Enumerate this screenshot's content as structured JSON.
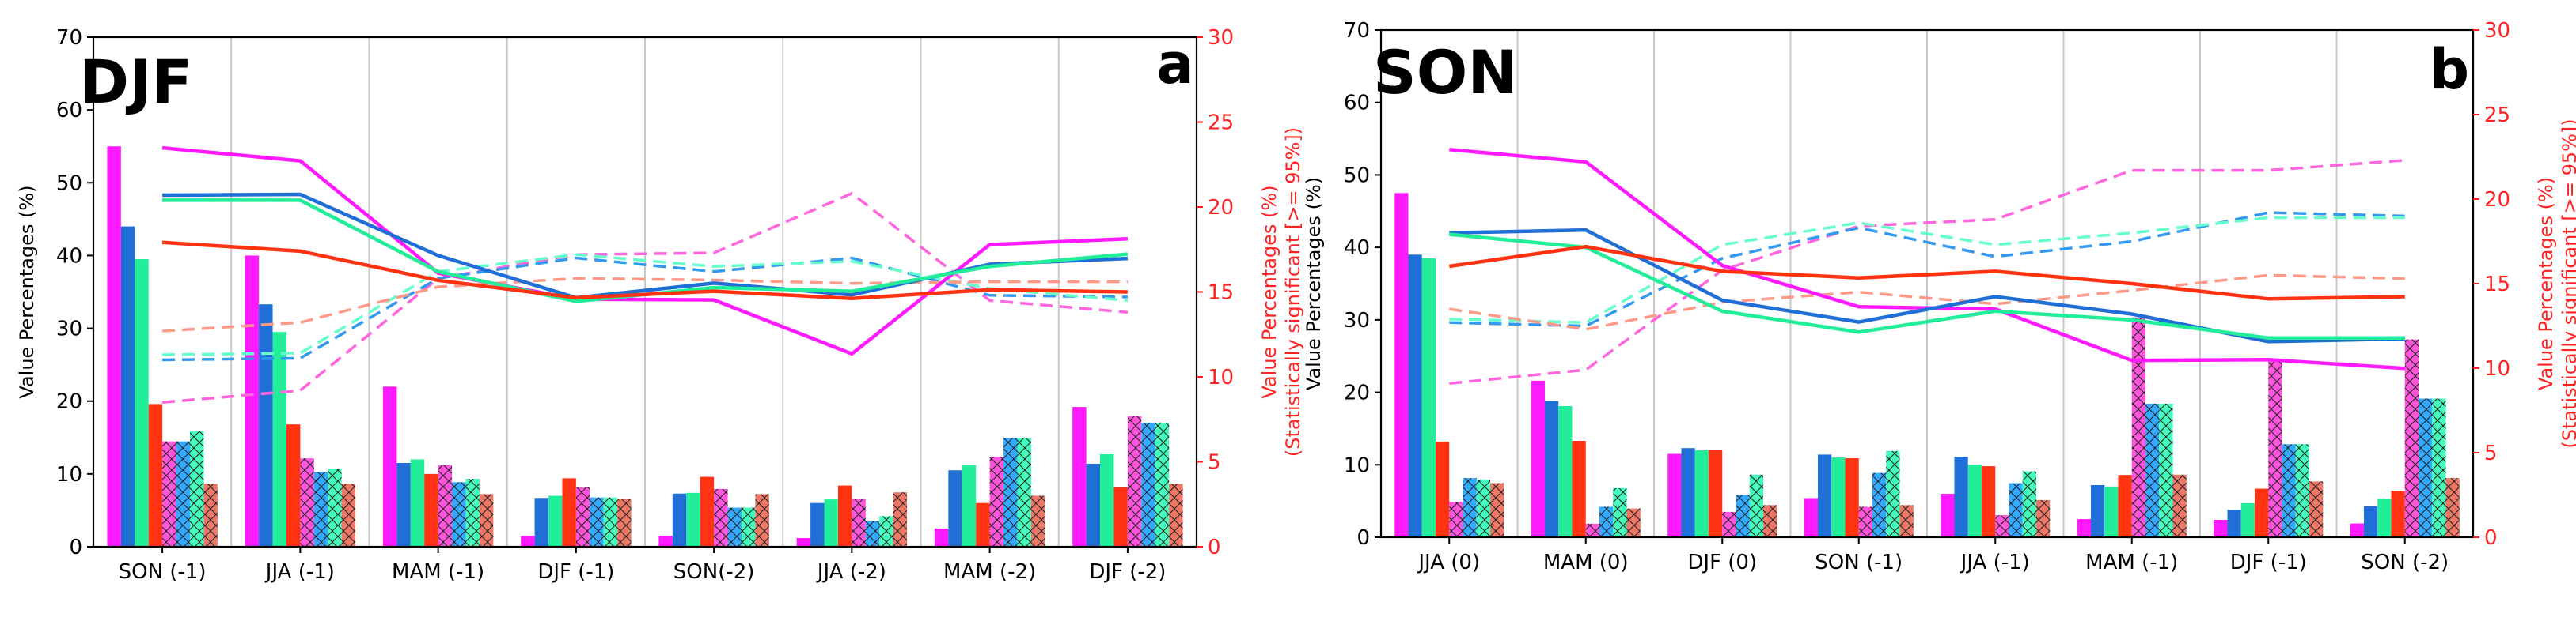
{
  "colors": {
    "magenta": "#ff1aff",
    "blue": "#1f6fd6",
    "green": "#22ee99",
    "red": "#ff3311",
    "hatch_magenta": "#ff55dd",
    "hatch_blue": "#33aaff",
    "hatch_green": "#44ffbb",
    "hatch_red": "#ee7766",
    "dash_magenta": "#ff66dd",
    "dash_blue": "#3399ee",
    "dash_green": "#66ffcc",
    "dash_red": "#ff9988",
    "left_axis": "#000000",
    "right_axis": "#ff2222",
    "grid": "#c8c8c8"
  },
  "chart_data": [
    {
      "type": "bar",
      "panel": "a",
      "season": "DJF",
      "ylabel": "Value Percentages (%)",
      "ylabel2_line1": "Value Percentages (%)",
      "ylabel2_line2": "(Statistically significant [>= 95%])",
      "ylim": [
        0,
        70
      ],
      "yticks": [
        0,
        10,
        20,
        30,
        40,
        50,
        60,
        70
      ],
      "ylim2": [
        0,
        30
      ],
      "yticks2": [
        0,
        5,
        10,
        15,
        20,
        25,
        30
      ],
      "categories": [
        "SON (-1)",
        "JJA (-1)",
        "MAM (-1)",
        "DJF (-1)",
        "SON(-2)",
        "JJA (-2)",
        "MAM (-2)",
        "DJF (-2)"
      ],
      "bars_left_axis": [
        {
          "name": "magenta",
          "values": [
            55,
            40,
            22,
            1.5,
            1.5,
            1.2,
            2.5,
            19.2
          ]
        },
        {
          "name": "blue",
          "values": [
            44,
            33.3,
            11.5,
            6.7,
            7.3,
            6,
            10.5,
            11.4
          ]
        },
        {
          "name": "green",
          "values": [
            39.5,
            29.5,
            12,
            7,
            7.4,
            6.5,
            11.2,
            12.7
          ]
        },
        {
          "name": "red",
          "values": [
            19.6,
            16.8,
            10,
            9.4,
            9.6,
            8.4,
            6,
            8.2
          ]
        }
      ],
      "bars_right_axis_hatched": [
        {
          "name": "magenta",
          "values": [
            6.2,
            5.2,
            4.8,
            3.5,
            3.4,
            2.8,
            5.3,
            7.7
          ]
        },
        {
          "name": "blue",
          "values": [
            6.2,
            4.4,
            3.8,
            2.9,
            2.3,
            1.5,
            6.4,
            7.3
          ]
        },
        {
          "name": "green",
          "values": [
            6.8,
            4.6,
            4,
            2.9,
            2.3,
            1.8,
            6.4,
            7.3
          ]
        },
        {
          "name": "red",
          "values": [
            3.7,
            3.7,
            3.1,
            2.8,
            3.1,
            3.2,
            3,
            3.7
          ]
        }
      ],
      "lines_left_axis": [
        {
          "name": "magenta",
          "values": [
            54.8,
            53,
            37.6,
            34,
            33.9,
            26.5,
            41.5,
            42.3
          ]
        },
        {
          "name": "blue",
          "values": [
            48.3,
            48.4,
            40,
            34.2,
            36.2,
            34.6,
            38.8,
            39.6
          ]
        },
        {
          "name": "green",
          "values": [
            47.6,
            47.6,
            37.8,
            33.7,
            35.6,
            35.1,
            38.5,
            40.2
          ]
        },
        {
          "name": "red",
          "values": [
            41.8,
            40.6,
            36.6,
            34.2,
            35.1,
            34.1,
            35.3,
            35
          ]
        }
      ],
      "lines_right_axis_dashed": [
        {
          "name": "magenta",
          "values": [
            8.5,
            9.2,
            15.8,
            17.2,
            17.3,
            20.8,
            14.5,
            13.8
          ]
        },
        {
          "name": "blue",
          "values": [
            11,
            11.1,
            15.8,
            17,
            16.2,
            17,
            14.8,
            14.7
          ]
        },
        {
          "name": "green",
          "values": [
            11.3,
            11.4,
            16.2,
            17.2,
            16.5,
            16.8,
            15.2,
            14.5
          ]
        },
        {
          "name": "red",
          "values": [
            12.7,
            13.2,
            15.3,
            15.8,
            15.7,
            15.5,
            15.6,
            15.6
          ]
        }
      ]
    },
    {
      "type": "bar",
      "panel": "b",
      "season": "SON",
      "ylabel": "Value Percentages (%)",
      "ylabel2_line1": "Value Percentages (%)",
      "ylabel2_line2": "(Statistically significant [>= 95%])",
      "ylim": [
        0,
        70
      ],
      "yticks": [
        0,
        10,
        20,
        30,
        40,
        50,
        60,
        70
      ],
      "ylim2": [
        0,
        30
      ],
      "yticks2": [
        0,
        5,
        10,
        15,
        20,
        25,
        30
      ],
      "categories": [
        "JJA (0)",
        "MAM (0)",
        "DJF (0)",
        "SON (-1)",
        "JJA (-1)",
        "MAM (-1)",
        "DJF (-1)",
        "SON (-2)"
      ],
      "bars_left_axis": [
        {
          "name": "magenta",
          "values": [
            47.5,
            21.6,
            11.5,
            5.4,
            6,
            2.5,
            2.4,
            1.9
          ]
        },
        {
          "name": "blue",
          "values": [
            39,
            18.8,
            12.3,
            11.4,
            11.1,
            7.2,
            3.8,
            4.3
          ]
        },
        {
          "name": "green",
          "values": [
            38.5,
            18.1,
            12,
            11,
            10,
            7,
            4.7,
            5.3
          ]
        },
        {
          "name": "red",
          "values": [
            13.2,
            13.3,
            12,
            10.9,
            9.8,
            8.6,
            6.7,
            6.4
          ]
        }
      ],
      "bars_right_axis_hatched": [
        {
          "name": "magenta",
          "values": [
            2.1,
            0.8,
            1.5,
            1.8,
            1.3,
            13,
            10.5,
            11.7
          ]
        },
        {
          "name": "blue",
          "values": [
            3.5,
            1.8,
            2.5,
            3.8,
            3.2,
            7.9,
            5.5,
            8.2
          ]
        },
        {
          "name": "green",
          "values": [
            3.4,
            2.9,
            3.7,
            5.1,
            3.9,
            7.9,
            5.5,
            8.2
          ]
        },
        {
          "name": "red",
          "values": [
            3.2,
            1.7,
            1.9,
            1.9,
            2.2,
            3.7,
            3.3,
            3.5
          ]
        }
      ],
      "lines_left_axis": [
        {
          "name": "magenta",
          "values": [
            53.5,
            51.8,
            37.5,
            31.8,
            31.5,
            24.4,
            24.5,
            23.3
          ]
        },
        {
          "name": "blue",
          "values": [
            42,
            42.4,
            32.7,
            29.7,
            33.2,
            30.8,
            27,
            27.4
          ]
        },
        {
          "name": "green",
          "values": [
            41.8,
            40,
            31.2,
            28.3,
            31.2,
            30,
            27.5,
            27.5
          ]
        },
        {
          "name": "red",
          "values": [
            37.4,
            40.1,
            36.7,
            35.8,
            36.7,
            35,
            32.9,
            33.2
          ]
        }
      ],
      "lines_right_axis_dashed": [
        {
          "name": "magenta",
          "values": [
            9.1,
            9.9,
            15.8,
            18.4,
            18.8,
            21.7,
            21.7,
            22.3
          ]
        },
        {
          "name": "blue",
          "values": [
            12.7,
            12.5,
            16.5,
            18.3,
            16.6,
            17.5,
            19.2,
            19
          ]
        },
        {
          "name": "green",
          "values": [
            12.9,
            12.7,
            17.3,
            18.6,
            17.3,
            18,
            18.9,
            18.9
          ]
        },
        {
          "name": "red",
          "values": [
            13.5,
            12.3,
            13.9,
            14.5,
            13.8,
            14.6,
            15.5,
            15.3
          ]
        }
      ]
    }
  ]
}
